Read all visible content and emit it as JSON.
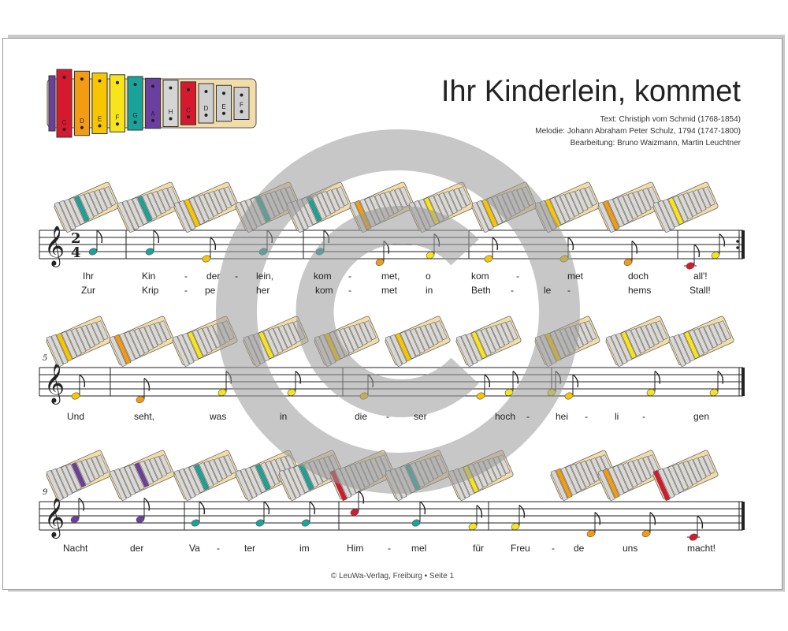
{
  "document": {
    "title": "Ihr Kinderlein, kommet",
    "credits": {
      "text": "Text: Christiph vom Schmid (1768-1854)",
      "melody": "Melodie: Johann Abraham Peter Schulz, 1794 (1747-1800)",
      "arrangement": "Bearbeitung: Bruno Waizmann, Martin Leuchtner"
    },
    "footer": "© LeuWa-Verlag, Freiburg  •  Seite 1",
    "time_signature": "2/4",
    "bar_numbers": [
      "5",
      "9"
    ]
  },
  "xylophone_legend": [
    "C",
    "D",
    "E",
    "F",
    "G",
    "A",
    "H",
    "C",
    "D",
    "E",
    "F"
  ],
  "colors": {
    "C": "#d7192f",
    "D": "#f39c12",
    "E": "#f7c600",
    "F": "#f7e41a",
    "G": "#1aa39a",
    "A": "#6a3fa0",
    "H": "#d5d5d5",
    "c": "#d7192f",
    "d": "#cfcfcf",
    "e": "#cfcfcf",
    "f": "#cfcfcf"
  },
  "lyrics": {
    "line1_verse1": [
      "Ihr",
      "Kin",
      "-",
      "der",
      "-",
      "lein,",
      "kom",
      "-",
      "met,",
      "o",
      "kom",
      "-",
      "met",
      "doch",
      "all'!"
    ],
    "line1_verse2": [
      "Zur",
      "Krip",
      "-",
      "pe",
      "her",
      "kom",
      "-",
      "met",
      "in",
      "Beth",
      "-",
      "le",
      "-",
      "hems",
      "Stall!"
    ],
    "line2": [
      "Und",
      "seht,",
      "was",
      "in",
      "die",
      "-",
      "ser",
      "hoch",
      "-",
      "hei",
      "-",
      "li",
      "-",
      "gen"
    ],
    "line3": [
      "Nacht",
      "der",
      "Va",
      "-",
      "ter",
      "im",
      "Him",
      "-",
      "mel",
      "für",
      "Freu",
      "-",
      "de",
      "uns",
      "macht!"
    ]
  },
  "notes": {
    "line1": [
      "G",
      "G",
      "E",
      "G",
      "G",
      "D",
      "F",
      "E",
      "E",
      "D",
      "C",
      "F"
    ],
    "line2": [
      "E",
      "D",
      "F",
      "F",
      "E",
      "F",
      "E",
      "F",
      "F",
      "E",
      "F"
    ],
    "line3": [
      "A",
      "A",
      "G",
      "G",
      "G",
      "c",
      "G",
      "F",
      "F",
      "D",
      "D",
      "C"
    ]
  }
}
